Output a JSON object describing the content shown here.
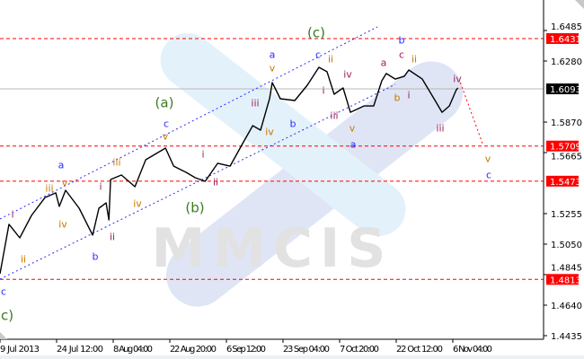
{
  "chart_data": {
    "type": "line",
    "title": "",
    "xlabel": "",
    "ylabel": "",
    "ylim": [
      1.4435,
      1.6485
    ],
    "grid": false,
    "x_ticks": [
      {
        "date": "2013-07-09T20:00",
        "label": "9 Jul 2013"
      },
      {
        "date": "2013-07-24T12:00",
        "label": "24 Jul 12:00"
      },
      {
        "date": "2013-08-08T04:00",
        "label": "8 Aug 04:00"
      },
      {
        "date": "2013-08-22T20:00",
        "label": "22 Aug 20:00"
      },
      {
        "date": "2013-09-06T12:00",
        "label": "6 Sep 12:00"
      },
      {
        "date": "2013-09-23T04:00",
        "label": "23 Sep 04:00"
      },
      {
        "date": "2013-10-07T20:00",
        "label": "7 Oct 20:00"
      },
      {
        "date": "2013-10-22T12:00",
        "label": "22 Oct 12:00"
      },
      {
        "date": "2013-11-06T04:00",
        "label": "6 Nov 04:00"
      }
    ],
    "y_ticks": [
      "1.6485",
      "1.6280",
      "1.5870",
      "1.5665",
      "1.5255",
      "1.5050",
      "1.4845",
      "1.4640",
      "1.4435"
    ],
    "series": [
      {
        "color": "#000000",
        "points": [
          [
            "2013-07-09T20:00",
            1.4851
          ],
          [
            "2013-07-12T04:00",
            1.5183
          ],
          [
            "2013-07-14T23:00",
            1.5092
          ],
          [
            "2013-07-18T00:00",
            1.5243
          ],
          [
            "2013-07-21T12:00",
            1.5363
          ],
          [
            "2013-07-24T07:00",
            1.5394
          ],
          [
            "2013-07-25T05:00",
            1.5303
          ],
          [
            "2013-07-26T20:00",
            1.5412
          ],
          [
            "2013-07-30T08:00",
            1.5291
          ],
          [
            "2013-08-02T20:00",
            1.511
          ],
          [
            "2013-08-04T11:00",
            1.5291
          ],
          [
            "2013-08-06T08:00",
            1.5327
          ],
          [
            "2013-08-07T01:00",
            1.5213
          ],
          [
            "2013-08-07T12:00",
            1.5484
          ],
          [
            "2013-08-10T07:00",
            1.5514
          ],
          [
            "2013-08-13T19:00",
            1.5436
          ],
          [
            "2013-08-16T14:00",
            1.5617
          ],
          [
            "2013-08-21T17:00",
            1.5695
          ],
          [
            "2013-08-23T20:00",
            1.5574
          ],
          [
            "2013-08-27T02:00",
            1.5532
          ],
          [
            "2013-08-29T10:00",
            1.5496
          ],
          [
            "2013-09-01T00:00",
            1.5472
          ],
          [
            "2013-09-04T06:00",
            1.5593
          ],
          [
            "2013-09-07T14:00",
            1.5574
          ],
          [
            "2013-09-11T06:00",
            1.5725
          ],
          [
            "2013-09-14T06:00",
            1.5846
          ],
          [
            "2013-09-16T13:00",
            1.5816
          ],
          [
            "2013-09-19T05:00",
            1.6027
          ],
          [
            "2013-09-20T00:00",
            1.6135
          ],
          [
            "2013-09-22T09:00",
            1.6027
          ],
          [
            "2013-09-26T05:00",
            1.6015
          ],
          [
            "2013-09-29T11:00",
            1.6117
          ],
          [
            "2013-10-02T11:00",
            1.6238
          ],
          [
            "2013-10-04T14:00",
            1.6208
          ],
          [
            "2013-10-06T10:00",
            1.6057
          ],
          [
            "2013-10-08T18:00",
            1.6099
          ],
          [
            "2013-10-10T15:00",
            1.5936
          ],
          [
            "2013-10-14T03:00",
            1.5978
          ],
          [
            "2013-10-16T16:00",
            1.5978
          ],
          [
            "2013-10-18T18:00",
            1.6147
          ],
          [
            "2013-10-19T22:00",
            1.6196
          ],
          [
            "2013-10-22T06:00",
            1.6159
          ],
          [
            "2013-10-24T14:00",
            1.6177
          ],
          [
            "2013-10-25T18:00",
            1.622
          ],
          [
            "2013-10-29T06:00",
            1.6159
          ],
          [
            "2013-11-01T07:00",
            1.6027
          ],
          [
            "2013-11-03T09:00",
            1.5936
          ],
          [
            "2013-11-05T06:00",
            1.5978
          ],
          [
            "2013-11-07T02:00",
            1.6087
          ],
          [
            "2013-11-07T12:00",
            1.6099
          ]
        ]
      }
    ],
    "forecast": {
      "color": "#ff0000",
      "points": [
        [
          "2013-11-08T03:00",
          1.6135
        ],
        [
          "2013-11-13T21:00",
          1.5725
        ]
      ]
    },
    "levels": [
      {
        "price": "1.6431",
        "color": "#ff0000",
        "style": "dashed"
      },
      {
        "price": "1.5709",
        "color": "#ff0000",
        "style": "dashed"
      },
      {
        "price": "1.5473",
        "color": "#ff0000",
        "style": "dashed"
      },
      {
        "price": "1.4813",
        "color": "#ff0000",
        "style": "dashed"
      }
    ],
    "current_price": {
      "price": "1.6093",
      "color": "#000000"
    },
    "channel_color": "#2b2bff",
    "wave_labels": [
      "(a)",
      "c",
      "v",
      "iii",
      "i",
      "iv",
      "(b)",
      "i",
      "ii",
      "a",
      "v",
      "iii",
      "iv",
      "i",
      "ii",
      "b",
      "ii",
      "iii",
      "iv",
      "c",
      "c)",
      "(c)",
      "a",
      "v",
      "c",
      "ii",
      "i",
      "iv",
      "b",
      "iii",
      "v",
      "a",
      "a",
      "b",
      "c",
      "ii",
      "b",
      "i",
      "iv",
      "iii",
      "v",
      "c"
    ]
  },
  "watermark": {
    "text": "MMCIS",
    "logo_colors": [
      "#dfe5f5",
      "#e3f1fa"
    ]
  }
}
